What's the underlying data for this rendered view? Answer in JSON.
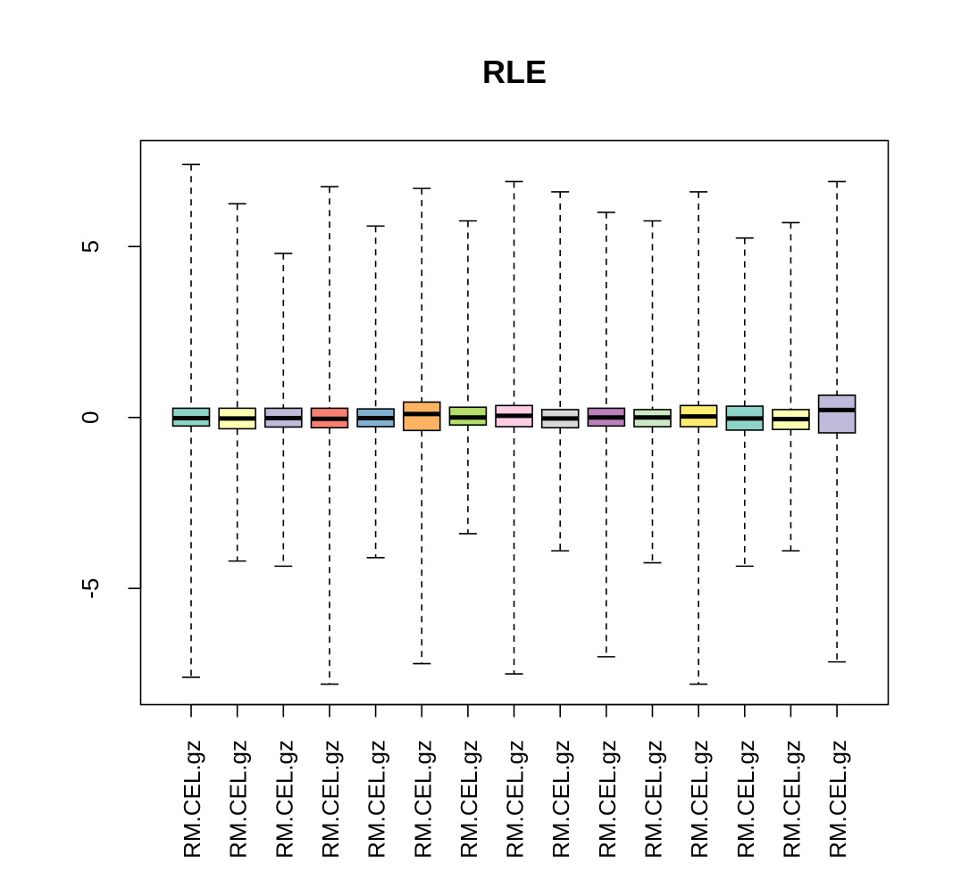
{
  "chart_data": {
    "type": "boxplot",
    "title": "RLE",
    "xlabel": "",
    "ylabel": "",
    "ylim": [
      -8.4,
      8.1
    ],
    "y_ticks": [
      -5,
      0,
      5
    ],
    "y_tick_labels": [
      "-5",
      "0",
      "5"
    ],
    "grid": false,
    "legend": "none",
    "categories": [
      "RM.CEL.gz",
      "RM.CEL.gz",
      "RM.CEL.gz",
      "RM.CEL.gz",
      "RM.CEL.gz",
      "RM.CEL.gz",
      "RM.CEL.gz",
      "RM.CEL.gz",
      "RM.CEL.gz",
      "RM.CEL.gz",
      "RM.CEL.gz",
      "RM.CEL.gz",
      "RM.CEL.gz",
      "RM.CEL.gz",
      "RM.CEL.gz"
    ],
    "boxes": [
      {
        "whisker_low": -7.6,
        "q1": -0.25,
        "median": -0.02,
        "q3": 0.27,
        "whisker_high": 7.4,
        "color": "#8DD3C7"
      },
      {
        "whisker_low": -4.2,
        "q1": -0.33,
        "median": -0.03,
        "q3": 0.27,
        "whisker_high": 6.25,
        "color": "#FFFFB3"
      },
      {
        "whisker_low": -4.35,
        "q1": -0.28,
        "median": -0.02,
        "q3": 0.27,
        "whisker_high": 4.8,
        "color": "#BEBADA"
      },
      {
        "whisker_low": -7.8,
        "q1": -0.3,
        "median": -0.04,
        "q3": 0.27,
        "whisker_high": 6.75,
        "color": "#FB8072"
      },
      {
        "whisker_low": -4.1,
        "q1": -0.27,
        "median": -0.02,
        "q3": 0.25,
        "whisker_high": 5.6,
        "color": "#80B1D3"
      },
      {
        "whisker_low": -7.2,
        "q1": -0.38,
        "median": 0.1,
        "q3": 0.45,
        "whisker_high": 6.7,
        "color": "#FDB462"
      },
      {
        "whisker_low": -3.4,
        "q1": -0.22,
        "median": 0.0,
        "q3": 0.3,
        "whisker_high": 5.75,
        "color": "#B3DE69"
      },
      {
        "whisker_low": -7.5,
        "q1": -0.27,
        "median": 0.05,
        "q3": 0.35,
        "whisker_high": 6.9,
        "color": "#FCCDE5"
      },
      {
        "whisker_low": -3.9,
        "q1": -0.3,
        "median": -0.03,
        "q3": 0.23,
        "whisker_high": 6.6,
        "color": "#D9D9D9"
      },
      {
        "whisker_low": -7.0,
        "q1": -0.25,
        "median": 0.0,
        "q3": 0.27,
        "whisker_high": 6.0,
        "color": "#BC80BD"
      },
      {
        "whisker_low": -4.25,
        "q1": -0.27,
        "median": 0.0,
        "q3": 0.23,
        "whisker_high": 5.75,
        "color": "#CCEBC5"
      },
      {
        "whisker_low": -7.8,
        "q1": -0.27,
        "median": 0.03,
        "q3": 0.35,
        "whisker_high": 6.6,
        "color": "#FFED6F"
      },
      {
        "whisker_low": -4.35,
        "q1": -0.37,
        "median": -0.03,
        "q3": 0.33,
        "whisker_high": 5.25,
        "color": "#8DD3C7"
      },
      {
        "whisker_low": -3.9,
        "q1": -0.35,
        "median": -0.05,
        "q3": 0.23,
        "whisker_high": 5.7,
        "color": "#FFFFB3"
      },
      {
        "whisker_low": -7.15,
        "q1": -0.45,
        "median": 0.22,
        "q3": 0.65,
        "whisker_high": 6.9,
        "color": "#BEBADA"
      }
    ]
  }
}
